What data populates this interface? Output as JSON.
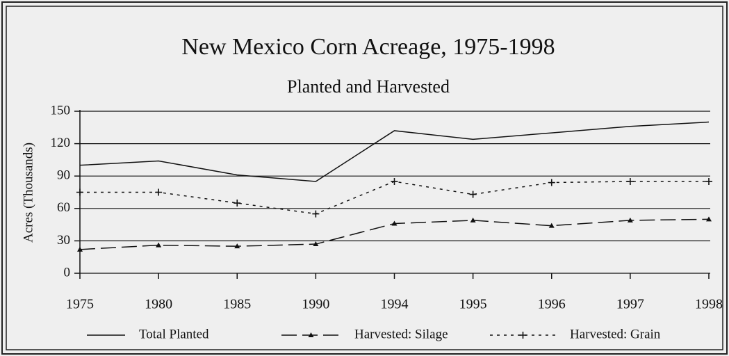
{
  "chart_data": {
    "type": "line",
    "title": "New Mexico Corn Acreage, 1975-1998",
    "subtitle": "Planted and Harvested",
    "y_label": "Acres (Thousands)",
    "categories": [
      "1975",
      "1980",
      "1985",
      "1990",
      "1994",
      "1995",
      "1996",
      "1997",
      "1998"
    ],
    "series": [
      {
        "name": "Total Planted",
        "color": "#111111",
        "dash": "solid",
        "marker": "none",
        "values": [
          100,
          104,
          91,
          85,
          132,
          124,
          130,
          136,
          140
        ]
      },
      {
        "name": "Harvested: Silage",
        "color": "#111111",
        "dash": "long",
        "marker": "triangle",
        "values": [
          22,
          26,
          25,
          27,
          46,
          49,
          44,
          49,
          50
        ]
      },
      {
        "name": "Harvested: Grain",
        "color": "#111111",
        "dash": "dotted",
        "marker": "plus",
        "values": [
          75,
          75,
          65,
          55,
          85,
          73,
          84,
          85,
          85
        ]
      }
    ],
    "ylim": [
      0,
      150
    ],
    "yticks": [
      0,
      30,
      60,
      90,
      120,
      150
    ],
    "grid": true,
    "legend": "bottom"
  }
}
